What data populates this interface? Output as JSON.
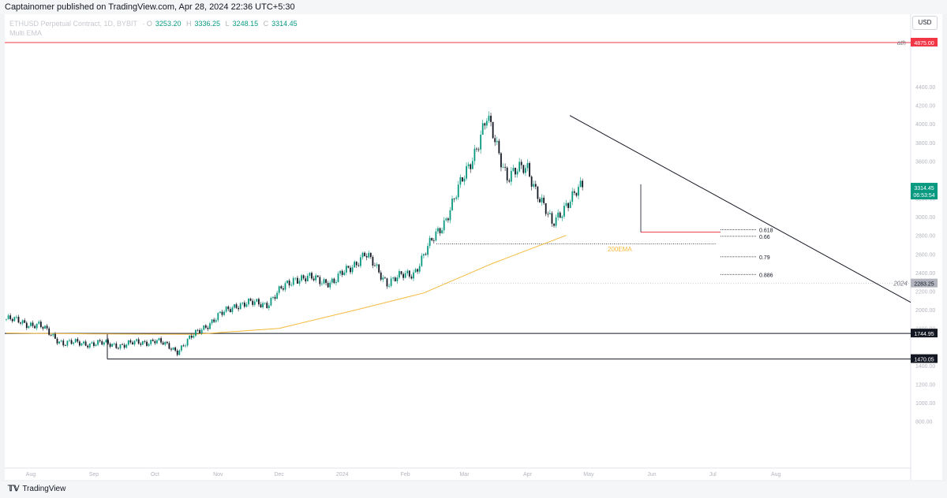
{
  "header": {
    "published": "Captainomer published on TradingView.com, Apr 28, 2024 22:36 UTC+5:30"
  },
  "legend": {
    "symbol": "ETHUSD Perpetual Contract, 1D, BYBIT",
    "open": "3253.20",
    "high": "3336.25",
    "low": "3248.15",
    "close": "3314.45",
    "indicator": "Multi EMA"
  },
  "currency_button": "USD",
  "price_axis": {
    "ticks": [
      "4400.00",
      "4200.00",
      "4000.00",
      "3800.00",
      "3600.00",
      "3200.00",
      "3000.00",
      "2800.00",
      "2600.00",
      "2400.00",
      "2200.00",
      "2000.00",
      "1800.00",
      "1400.00",
      "1200.00",
      "1000.00",
      "800.00"
    ]
  },
  "time_axis": {
    "ticks": [
      "Aug",
      "Sep",
      "Oct",
      "Nov",
      "Dec",
      "2024",
      "Feb",
      "Mar",
      "Apr",
      "May",
      "Jun",
      "Jul",
      "Aug"
    ]
  },
  "levels": {
    "ath": {
      "label": "ath",
      "value": "4875.00",
      "color": "#f23645"
    },
    "current": {
      "value": "3314.45",
      "countdown": "06:53:54",
      "color": "#089981"
    },
    "y2024": {
      "label": "2024",
      "value": "2283.25",
      "color": "#b2b5be"
    },
    "support1": {
      "value": "1744.95"
    },
    "support2": {
      "value": "1470.05"
    }
  },
  "fib": {
    "levels": [
      {
        "ratio": "0.618",
        "price": 2861
      },
      {
        "ratio": "0.66",
        "price": 2790
      },
      {
        "ratio": "0.79",
        "price": 2570
      },
      {
        "ratio": "0.886",
        "price": 2380
      }
    ]
  },
  "ema_label": "200EMA",
  "footer": {
    "brand": "TradingView"
  },
  "colors": {
    "up": "#089981",
    "down": "#131722",
    "ema": "#f5b93a",
    "ath": "#f23645"
  },
  "chart_data": {
    "type": "candlestick",
    "symbol": "ETHUSD",
    "timeframe": "1D",
    "ylim": [
      700,
      5000
    ],
    "series": [
      {
        "name": "ETHUSD",
        "x": [
          "2023-07-20",
          "2023-08-05",
          "2023-08-17",
          "2023-09-01",
          "2023-09-15",
          "2023-10-01",
          "2023-10-12",
          "2023-10-24",
          "2023-11-10",
          "2023-11-25",
          "2023-12-09",
          "2023-12-28",
          "2024-01-12",
          "2024-01-23",
          "2024-02-05",
          "2024-02-20",
          "2024-03-01",
          "2024-03-12",
          "2024-03-22",
          "2024-04-01",
          "2024-04-13",
          "2024-04-20",
          "2024-04-28"
        ],
        "values": [
          1900,
          1830,
          1640,
          1640,
          1620,
          1670,
          1560,
          1800,
          2060,
          2070,
          2350,
          2300,
          2600,
          2300,
          2400,
          2950,
          3430,
          4050,
          3450,
          3520,
          2900,
          3150,
          3314
        ]
      },
      {
        "name": "200EMA",
        "x": [
          "2023-07-20",
          "2023-09-01",
          "2023-10-20",
          "2023-12-01",
          "2024-01-10",
          "2024-02-10",
          "2024-03-15",
          "2024-04-20"
        ],
        "values": [
          1750,
          1740,
          1735,
          1800,
          2010,
          2180,
          2500,
          2800
        ]
      }
    ]
  }
}
